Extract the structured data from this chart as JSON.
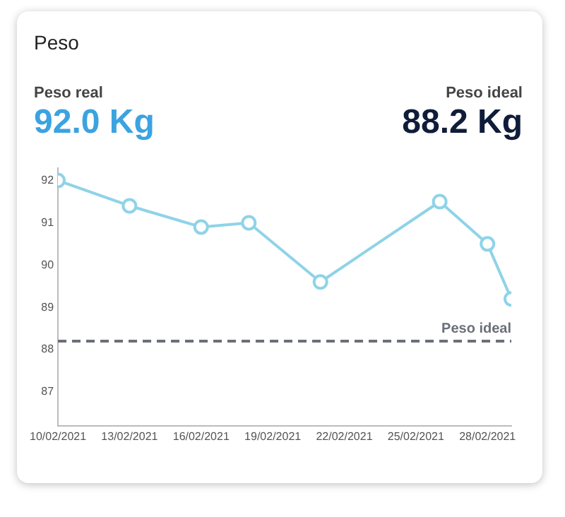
{
  "chart_data": {
    "type": "line",
    "title": "Peso",
    "annotations": [
      "Peso real",
      "92.0 Kg",
      "Peso ideal",
      "88.2 Kg"
    ],
    "x": [
      "2021-02-10",
      "2021-02-13",
      "2021-02-16",
      "2021-02-18",
      "2021-02-21",
      "2021-02-26",
      "2021-02-28",
      "2021-03-01"
    ],
    "series": [
      {
        "color": "#8fd3e8",
        "values": [
          92.0,
          91.4,
          90.9,
          91.0,
          89.6,
          91.5,
          90.5,
          89.2
        ]
      }
    ],
    "xlim": [
      "2021-02-10",
      "2021-03-01"
    ],
    "xticks": [
      {
        "value": "2021-02-10",
        "label": "10/02/2021"
      },
      {
        "value": "2021-02-13",
        "label": "13/02/2021"
      },
      {
        "value": "2021-02-16",
        "label": "16/02/2021"
      },
      {
        "value": "2021-02-19",
        "label": "19/02/2021"
      },
      {
        "value": "2021-02-22",
        "label": "22/02/2021"
      },
      {
        "value": "2021-02-25",
        "label": "25/02/2021"
      },
      {
        "value": "2021-02-28",
        "label": "28/02/2021"
      }
    ],
    "ylim": [
      86.2,
      92.3
    ],
    "yticks": [
      87,
      88,
      89,
      90,
      91,
      92
    ],
    "ref_lines": [
      {
        "axis": "y",
        "value": 88.2,
        "label": "Peso ideal",
        "color": "#6b6f78",
        "line_style": "dashed"
      }
    ],
    "grid": false,
    "legend": false,
    "marker": "circle",
    "line_style": "solid"
  }
}
